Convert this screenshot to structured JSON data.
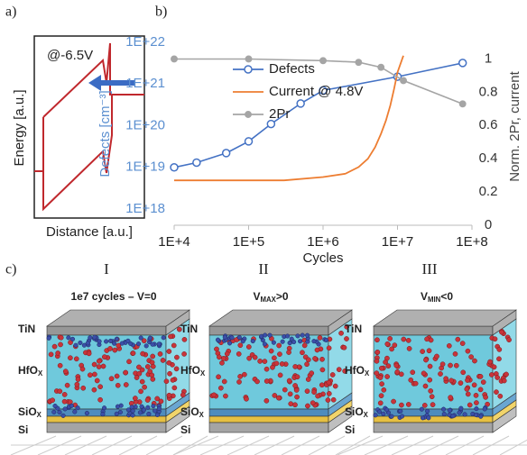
{
  "panel_labels": [
    "a)",
    "b)",
    "c)"
  ],
  "diagram": {
    "bias": "@-6.5V",
    "y_label": "Energy [a.u.]",
    "x_label": "Distance [a.u.]"
  },
  "chart_data": {
    "type": "line",
    "xscale": "log",
    "yscale": "log",
    "xlabel": "Cycles",
    "ylabel": "Defects [cm⁻³]",
    "y2label": "Norm. 2Pr, current",
    "xlim": [
      10000,
      100000000
    ],
    "xticks": [
      {
        "value": 10000,
        "label": "1E+4"
      },
      {
        "value": 100000,
        "label": "1E+5"
      },
      {
        "value": 1000000,
        "label": "1E+6"
      },
      {
        "value": 10000000,
        "label": "1E+7"
      },
      {
        "value": 100000000,
        "label": "1E+8"
      }
    ],
    "ylim": [
      1e+18,
      1e+22
    ],
    "yticks": [
      {
        "value": 1e+18,
        "label": "1E+18"
      },
      {
        "value": 1e+19,
        "label": "1E+19"
      },
      {
        "value": 1e+20,
        "label": "1E+20"
      },
      {
        "value": 1e+21,
        "label": "1E+21"
      },
      {
        "value": 1e+22,
        "label": "1E+22"
      }
    ],
    "ylabel_color": "#5b8fd0",
    "y2lim": [
      0,
      1.1
    ],
    "y2ticks": [
      0,
      0.2,
      0.4,
      0.6,
      0.8,
      1
    ],
    "legend": "upper left",
    "series": [
      {
        "name": "Defects",
        "color": "#4472c4",
        "marker": "open-circle",
        "x": [
          10000,
          20000,
          50000,
          100000,
          200000,
          500000,
          1000000,
          10000000,
          75000000
        ],
        "values": [
          1e+19,
          1.3e+19,
          2.2e+19,
          4.2e+19,
          1.1e+20,
          3.4e+20,
          7e+20,
          1.5e+21,
          3.2e+21
        ]
      },
      {
        "name": "Current @ 4.8V",
        "color": "#ed7d31",
        "marker": "none",
        "axis": "y2",
        "x": [
          10000,
          100000,
          300000,
          1000000,
          2000000,
          3000000,
          4000000,
          5000000,
          6000000,
          7000000,
          8000000,
          9000000,
          10000000,
          12000000
        ],
        "values": [
          0.27,
          0.27,
          0.27,
          0.29,
          0.31,
          0.35,
          0.4,
          0.47,
          0.55,
          0.63,
          0.72,
          0.82,
          0.92,
          1.02
        ]
      },
      {
        "name": "2Pr",
        "color": "#a5a5a5",
        "marker": "circle",
        "axis": "y2",
        "x": [
          10000,
          100000,
          1000000,
          3000000,
          6000000,
          12000000,
          75000000
        ],
        "values": [
          1,
          1,
          0.99,
          0.98,
          0.95,
          0.87,
          0.73
        ]
      }
    ]
  },
  "simulations": [
    {
      "numeral": "I",
      "caption": {
        "main": "1e7 cycles – V=0"
      }
    },
    {
      "numeral": "II",
      "caption": {
        "main": "V",
        "sub": "MAX",
        "tail": ">0"
      }
    },
    {
      "numeral": "III",
      "caption": {
        "main": "V",
        "sub": "MIN",
        "tail": "<0"
      }
    }
  ],
  "layers": [
    {
      "main": "TiN"
    },
    {
      "main": "HfO",
      "sub": "X"
    },
    {
      "main": "SiO",
      "sub": "X"
    },
    {
      "main": "Si"
    }
  ]
}
